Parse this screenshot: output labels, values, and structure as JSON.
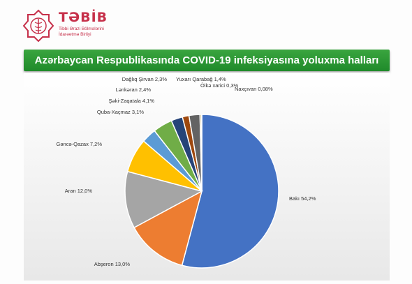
{
  "header": {
    "logo_text": "TƏBİB",
    "logo_subtitle": [
      "Tibbi Ərazi Bölmələrini",
      "İdarəetmə Birliyi"
    ]
  },
  "banner": {
    "title": "Azərbaycan Respublikasında COVID-19 infeksiyasına yoluxma halları"
  },
  "colors": {
    "banner": "#2e9a36",
    "logo": "#c6304a"
  },
  "chart_data": {
    "type": "pie",
    "title": "Azərbaycan Respublikasında COVID-19 infeksiyasına yoluxma halları",
    "slices": [
      {
        "label": "Bakı",
        "value": 54.2,
        "display": "Bakı 54,2%",
        "color": "#4472c4"
      },
      {
        "label": "Abşeron",
        "value": 13.0,
        "display": "Abşeron 13,0%",
        "color": "#ed7d31"
      },
      {
        "label": "Aran",
        "value": 12.0,
        "display": "Aran 12,0%",
        "color": "#a5a5a5"
      },
      {
        "label": "Gəncə-Qazax",
        "value": 7.2,
        "display": "Gəncə-Qazax 7,2%",
        "color": "#ffc000"
      },
      {
        "label": "Quba-Xaçmaz",
        "value": 3.1,
        "display": "Quba-Xaçmaz 3,1%",
        "color": "#5b9bd5"
      },
      {
        "label": "Şəki-Zaqatala",
        "value": 4.1,
        "display": "Şəki-Zaqatala 4,1%",
        "color": "#70ad47"
      },
      {
        "label": "Lənkəran",
        "value": 2.4,
        "display": "Lənkəran 2,4%",
        "color": "#264478"
      },
      {
        "label": "Yuxarı Qarabağ",
        "value": 1.4,
        "display": "Yuxarı Qarabağ 1,4%",
        "color": "#9e480e"
      },
      {
        "label": "Dağlıq Şirvan",
        "value": 2.3,
        "display": "Dağlıq Şirvan 2,3%",
        "color": "#636363"
      },
      {
        "label": "Ölkə xarici",
        "value": 0.3,
        "display": "Ölkə xarici 0,3%",
        "color": "#997300"
      },
      {
        "label": "Naxçıvan",
        "value": 0.08,
        "display": "Naxçıvan 0,08%",
        "color": "#8fb5e0"
      }
    ]
  }
}
